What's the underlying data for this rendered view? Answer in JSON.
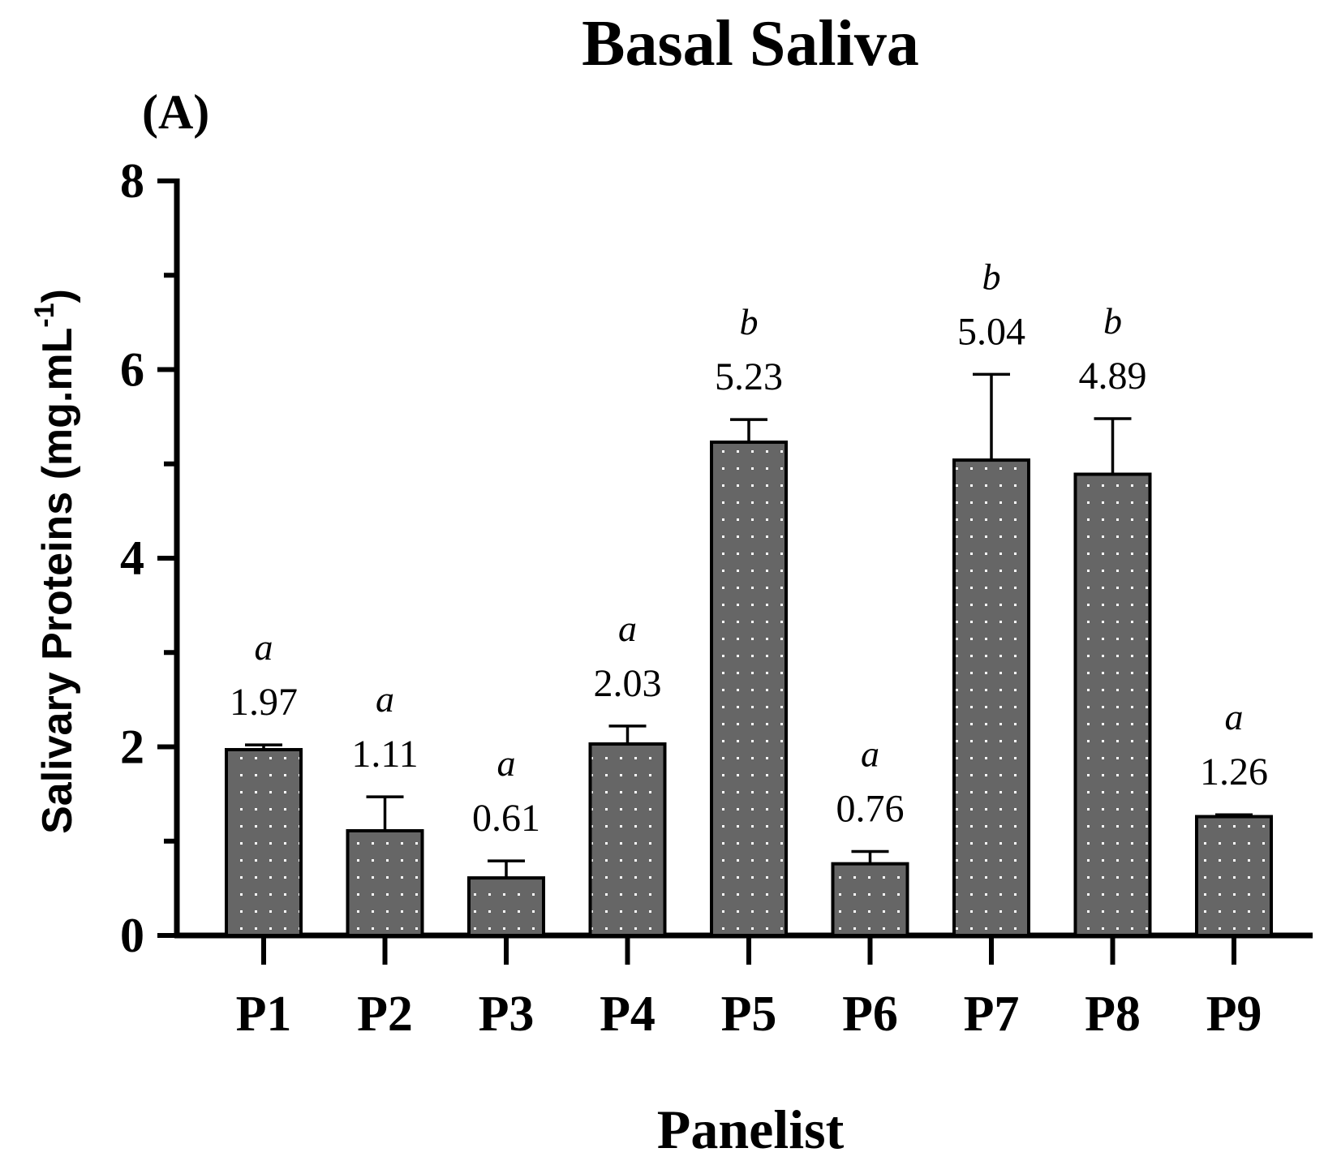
{
  "panel_label": "(A)",
  "colors": {
    "bar_fill": "#666666",
    "bar_stroke": "#000000",
    "dot": "#ffffff",
    "axis": "#000000"
  },
  "chart_data": {
    "type": "bar",
    "title": "Basal Saliva",
    "xlabel": "Panelist",
    "ylabel": "Salivary Proteins (mg.mL",
    "ylabel_superscript": "-1",
    "ylabel_close": ")",
    "ylim": [
      0,
      8
    ],
    "yticks": [
      0,
      2,
      4,
      6,
      8
    ],
    "y_minor_step": 1,
    "categories": [
      "P1",
      "P2",
      "P3",
      "P4",
      "P5",
      "P6",
      "P7",
      "P8",
      "P9"
    ],
    "values": [
      1.97,
      1.11,
      0.61,
      2.03,
      5.23,
      0.76,
      5.04,
      4.89,
      1.26
    ],
    "error_upper": [
      2.02,
      1.47,
      0.79,
      2.22,
      5.47,
      0.89,
      5.95,
      5.48,
      1.28
    ],
    "value_labels": [
      "1.97",
      "1.11",
      "0.61",
      "2.03",
      "5.23",
      "0.76",
      "5.04",
      "4.89",
      "1.26"
    ],
    "significance": [
      "a",
      "a",
      "a",
      "a",
      "b",
      "a",
      "b",
      "b",
      "a"
    ]
  }
}
